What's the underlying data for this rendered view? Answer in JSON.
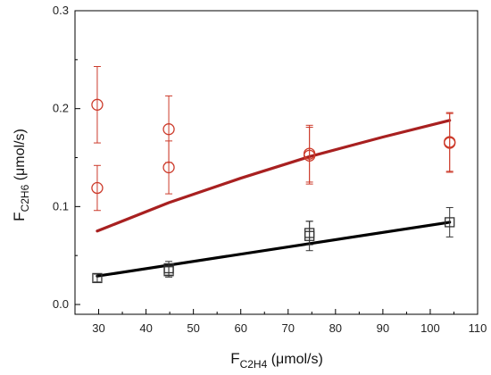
{
  "chart_data": {
    "type": "scatter",
    "x_axis": {
      "title_main": "F",
      "title_sub": "C2H4",
      "title_unit": " (μmol/s)",
      "range": [
        25,
        110
      ],
      "ticks": [
        30,
        40,
        50,
        60,
        70,
        80,
        90,
        100,
        110
      ],
      "tick_labels": [
        "30",
        "40",
        "50",
        "60",
        "70",
        "80",
        "90",
        "100",
        "110"
      ],
      "minor_step": 5
    },
    "y_axis": {
      "title_main": "F",
      "title_sub": "C2H6",
      "title_unit": " (μmol/s)",
      "range": [
        -0.01,
        0.3
      ],
      "ticks": [
        0.0,
        0.1,
        0.2,
        0.3
      ],
      "tick_labels": [
        "0.0",
        "0.1",
        "0.2",
        "0.3"
      ],
      "minor_step": 0.05
    },
    "grid": false,
    "legend": false,
    "series": [
      {
        "marker": "circle",
        "color": "#cc3a2a",
        "points": [
          {
            "x": 29.7,
            "y": 0.204,
            "err": 0.039
          },
          {
            "x": 29.7,
            "y": 0.119,
            "err": 0.023
          },
          {
            "x": 44.8,
            "y": 0.179,
            "err": 0.034
          },
          {
            "x": 44.8,
            "y": 0.14,
            "err": 0.027
          },
          {
            "x": 74.5,
            "y": 0.154,
            "err": 0.029
          },
          {
            "x": 74.5,
            "y": 0.152,
            "err": 0.029
          },
          {
            "x": 104.1,
            "y": 0.166,
            "err": 0.03
          },
          {
            "x": 104.1,
            "y": 0.165,
            "err": 0.03
          }
        ],
        "fit": {
          "color": "#a82020",
          "x": [
            29.7,
            44.8,
            60,
            74.5,
            90,
            104.1
          ],
          "y": [
            0.075,
            0.104,
            0.129,
            0.151,
            0.171,
            0.188
          ]
        }
      },
      {
        "marker": "square",
        "color": "#333333",
        "points": [
          {
            "x": 29.7,
            "y": 0.027,
            "err": 0.004
          },
          {
            "x": 44.8,
            "y": 0.037,
            "err": 0.007
          },
          {
            "x": 44.8,
            "y": 0.034,
            "err": 0.006
          },
          {
            "x": 74.5,
            "y": 0.07,
            "err": 0.015
          },
          {
            "x": 74.5,
            "y": 0.073,
            "err": 0.012
          },
          {
            "x": 104.1,
            "y": 0.084,
            "err": 0.015
          }
        ],
        "fit": {
          "color": "#000000",
          "x": [
            29.7,
            104.1
          ],
          "y": [
            0.029,
            0.084
          ]
        }
      }
    ]
  }
}
